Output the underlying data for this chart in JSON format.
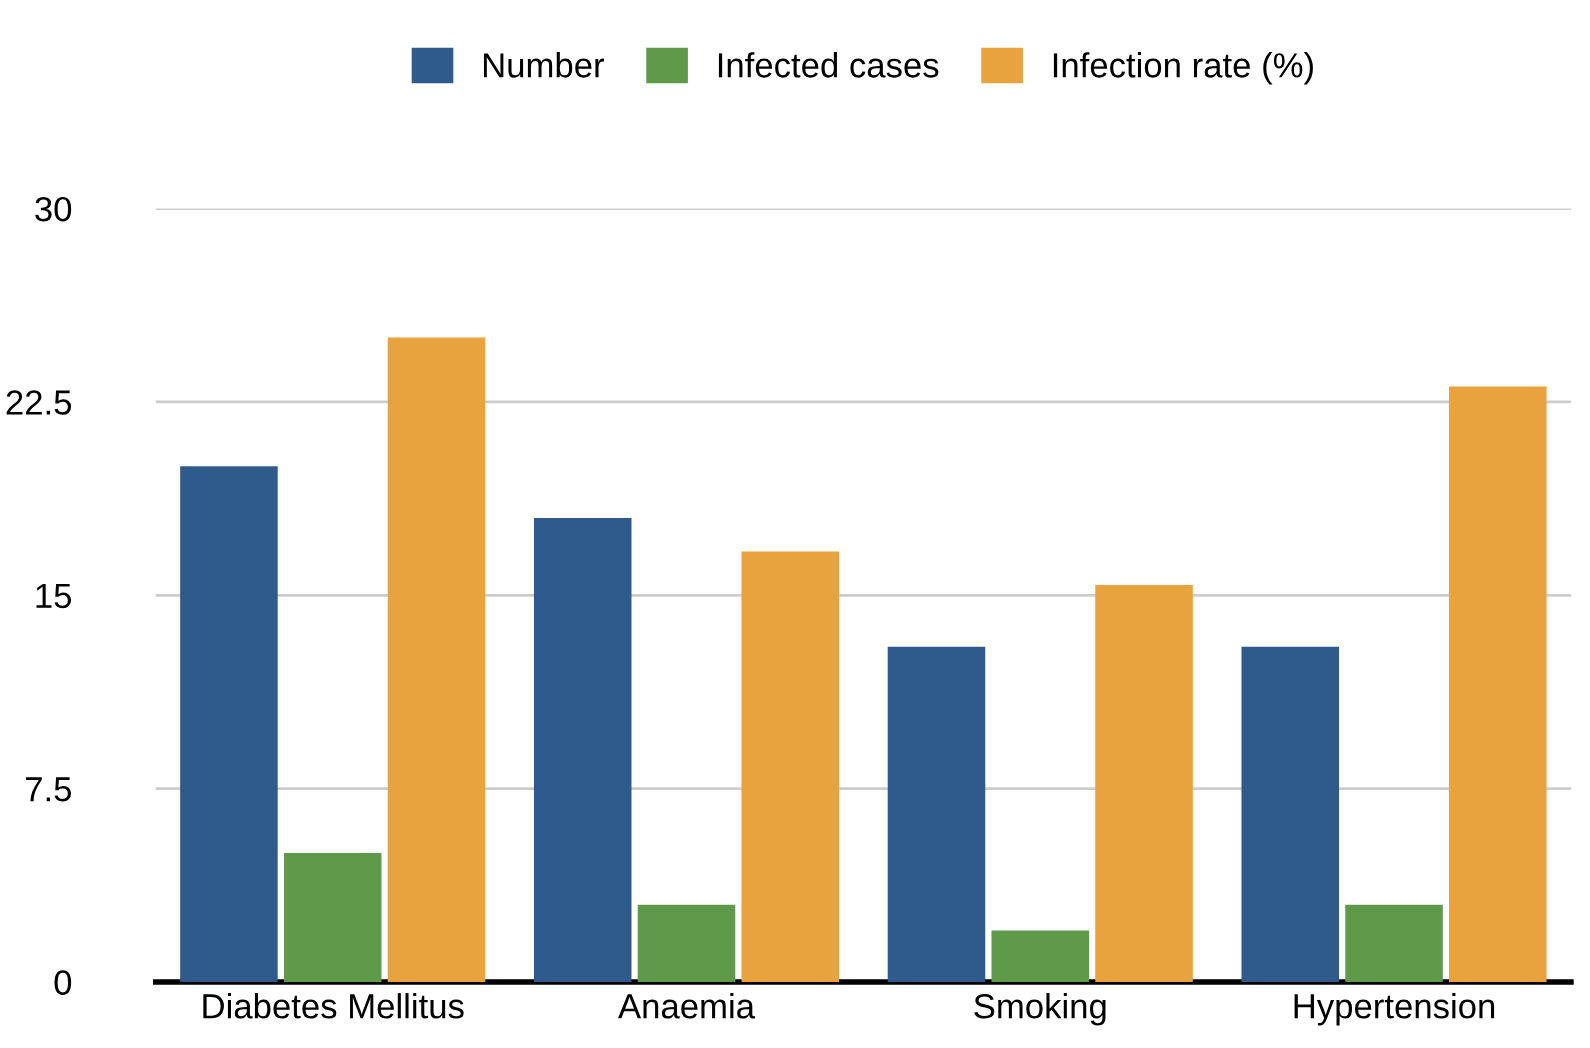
{
  "chart_data": {
    "type": "bar",
    "categories": [
      "Diabetes Mellitus",
      "Anaemia",
      "Smoking",
      "Hypertension"
    ],
    "series": [
      {
        "name": "Number",
        "color": "#2e5a8c",
        "values": [
          20,
          18,
          13,
          13
        ]
      },
      {
        "name": "Infected cases",
        "color": "#5f9a4a",
        "values": [
          5,
          3,
          2,
          3
        ]
      },
      {
        "name": "Infection rate (%)",
        "color": "#e8a23e",
        "values": [
          25,
          16.7,
          15.4,
          23.1
        ]
      }
    ],
    "ylim": [
      0,
      30
    ],
    "yticks": [
      0,
      7.5,
      15,
      22.5,
      30
    ],
    "grid": "y",
    "legend": "top"
  }
}
